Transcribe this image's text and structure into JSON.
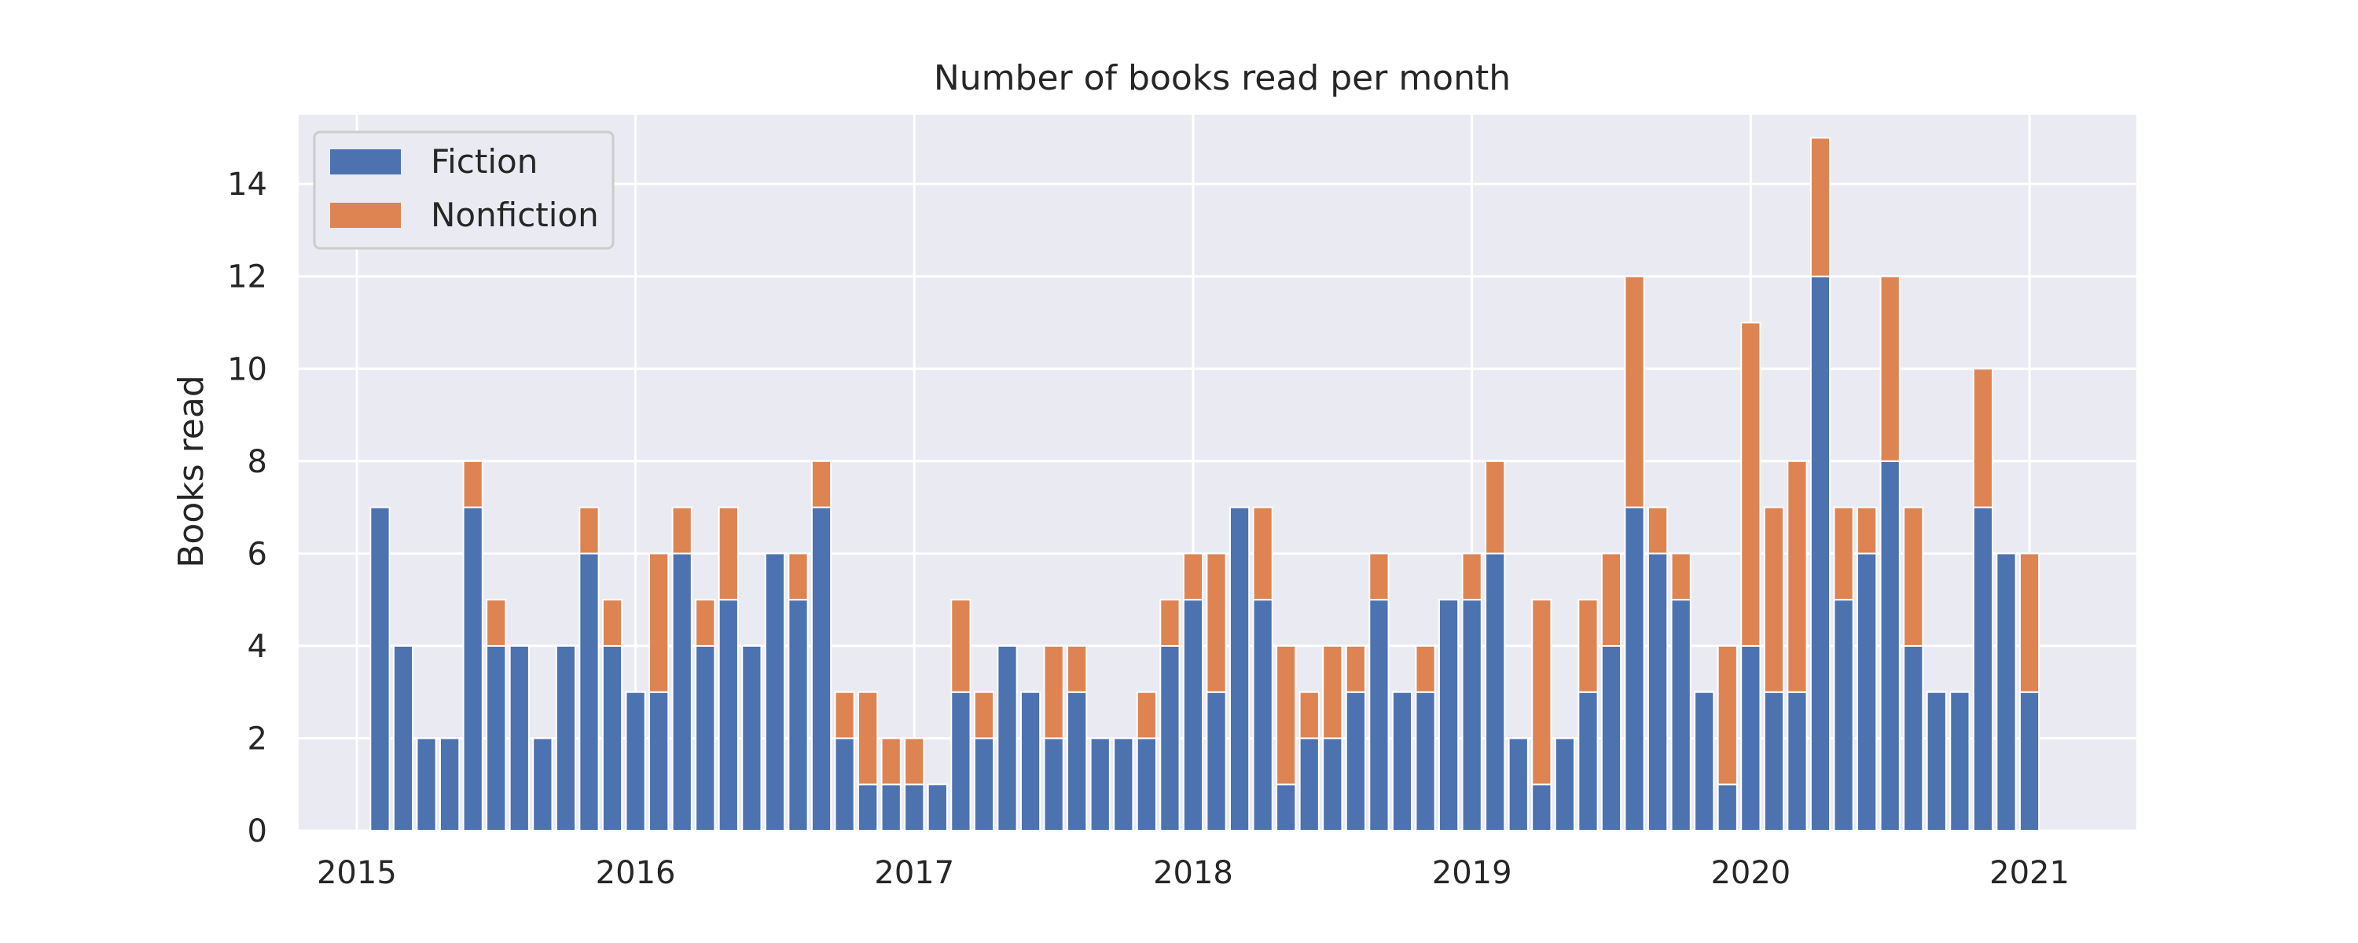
{
  "chart_data": {
    "type": "bar",
    "stacked": true,
    "title": "Number of books read per month",
    "xlabel": "",
    "ylabel": "Books read",
    "x_start_year": 2015,
    "x_start_month": 2,
    "x_ticks": [
      "2015",
      "2016",
      "2017",
      "2018",
      "2019",
      "2020",
      "2021"
    ],
    "y_ticks": [
      0,
      2,
      4,
      6,
      8,
      10,
      12,
      14
    ],
    "ylim": [
      0,
      15.5
    ],
    "grid": true,
    "legend_position": "top-left",
    "series": [
      {
        "name": "Fiction",
        "color": "#4c72b0",
        "values": [
          7,
          4,
          2,
          2,
          7,
          4,
          4,
          2,
          4,
          6,
          4,
          3,
          3,
          6,
          4,
          5,
          4,
          6,
          5,
          7,
          2,
          1,
          1,
          1,
          1,
          3,
          2,
          4,
          3,
          2,
          3,
          2,
          2,
          2,
          4,
          5,
          3,
          7,
          5,
          1,
          2,
          2,
          3,
          5,
          3,
          3,
          5,
          5,
          6,
          2,
          1,
          2,
          3,
          4,
          7,
          6,
          5,
          3,
          1,
          4,
          3,
          3,
          12,
          5,
          6,
          8,
          4,
          3,
          3,
          7,
          6,
          3
        ]
      },
      {
        "name": "Nonfiction",
        "color": "#dd8452",
        "values": [
          0,
          0,
          0,
          0,
          1,
          1,
          0,
          0,
          0,
          1,
          1,
          0,
          3,
          1,
          1,
          2,
          0,
          0,
          1,
          1,
          1,
          2,
          1,
          1,
          0,
          2,
          1,
          0,
          0,
          2,
          1,
          0,
          0,
          1,
          1,
          1,
          3,
          0,
          2,
          3,
          1,
          2,
          1,
          1,
          0,
          1,
          0,
          1,
          2,
          0,
          4,
          0,
          2,
          2,
          5,
          1,
          1,
          0,
          3,
          7,
          4,
          5,
          3,
          2,
          1,
          4,
          3,
          0,
          0,
          3,
          0,
          3
        ]
      }
    ]
  }
}
